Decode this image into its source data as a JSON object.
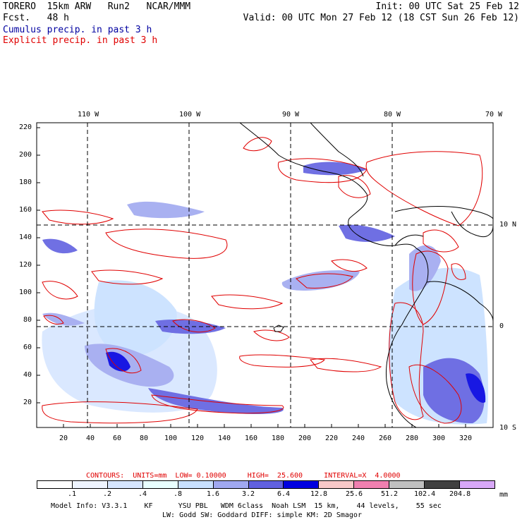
{
  "header": {
    "model_line": "TORERO  15km ARW   Run2   NCAR/MMM",
    "fcst_line": "Fcst.   48 h",
    "init_line": "Init: 00 UTC Sat 25 Feb 12",
    "valid_line": "Valid: 00 UTC Mon 27 Feb 12 (18 CST Sun 26 Feb 12)",
    "legend_cumulus": "Cumulus precip. in past 3 h",
    "legend_explicit": "Explicit precip. in past 3 h",
    "color_cumulus": "#0000a0",
    "color_explicit": "#e00000"
  },
  "map": {
    "lon_labels": [
      "110 W",
      "100 W",
      "90 W",
      "80 W",
      "70 W"
    ],
    "lat_labels": [
      "10 N",
      "0",
      "10 S"
    ],
    "y_ticks": [
      "220",
      "200",
      "180",
      "160",
      "140",
      "120",
      "100",
      "80",
      "60",
      "40",
      "20"
    ],
    "x_ticks": [
      "20",
      "40",
      "60",
      "80",
      "100",
      "120",
      "140",
      "160",
      "180",
      "200",
      "220",
      "240",
      "260",
      "280",
      "300",
      "320"
    ]
  },
  "contour_info": {
    "text": "CONTOURS:  UNITS=mm  LOW= 0.10000     HIGH=  25.600     INTERVAL=X  4.0000",
    "color": "#e00000"
  },
  "colorbar": {
    "unit": "mm",
    "labels": [
      ".1",
      ".2",
      ".4",
      ".8",
      "1.6",
      "3.2",
      "6.4",
      "12.8",
      "25.6",
      "51.2",
      "102.4",
      "204.8"
    ],
    "colors": [
      "#ffffff",
      "#eef4ff",
      "#d6e6ff",
      "#e8ffff",
      "#c8e0ff",
      "#a0a8f0",
      "#6060e0",
      "#0000e0",
      "#f8c8c8",
      "#f080b0",
      "#c0c0c0",
      "#404040",
      "#d8a8f8"
    ]
  },
  "footer": {
    "line1": "Model Info: V3.3.1    KF      YSU PBL   WDM 6class  Noah LSM  15 km,    44 levels,    55 sec",
    "line2": "LW: Godd SW: Goddard DIFF: simple KM: 2D Smagor"
  }
}
